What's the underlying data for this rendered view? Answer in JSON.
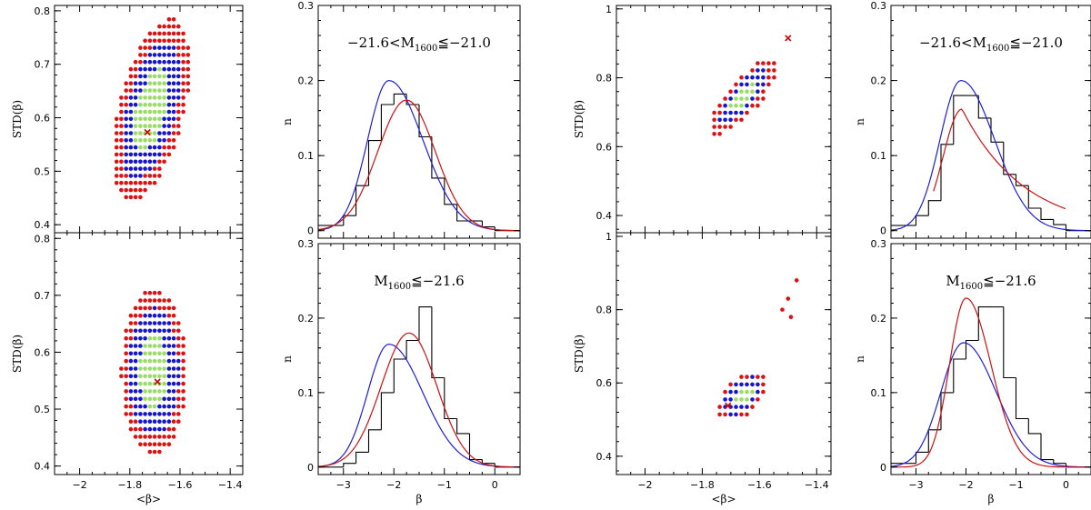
{
  "colors": {
    "outer": "#dd1111",
    "mid": "#1515cc",
    "inner": "#99dd66",
    "best": "#cc0000",
    "histogram": "#000000",
    "blue_curve": "#1f1fd6",
    "red_curve": "#cc1111"
  },
  "chart_data": [
    {
      "id": "TL",
      "type": "scatter",
      "kind": "grid",
      "xlabel": "",
      "ylabel": "STD(β)",
      "xlim": [
        -2.1,
        -1.35
      ],
      "ylim": [
        0.385,
        0.81
      ],
      "xticks": [],
      "yticks": [
        0.4,
        0.5,
        0.6,
        0.7,
        0.8
      ],
      "grid_dx": 0.019,
      "grid_dy": 0.0133,
      "cx": -1.715,
      "cy": 0.615,
      "ax": 0.155,
      "ay": 0.17,
      "cov": 0.5,
      "best": [
        -1.73,
        0.573
      ],
      "top_cut": 0.79,
      "scale_inner": 0.45,
      "scale_mid": 0.75
    },
    {
      "id": "TL2",
      "type": "histogram",
      "kind": "hist",
      "annotation": "−21.6<M",
      "annotation_sub": "1600",
      "annotation_tail": "≦−21.0",
      "xlabel": "",
      "ylabel": "n",
      "xlim": [
        -3.5,
        0.5
      ],
      "ylim": [
        -0.01,
        0.3
      ],
      "xticks": [],
      "yticks": [
        0,
        0.1,
        0.2,
        0.3
      ],
      "bin_edges": [
        -3.5,
        -3.25,
        -3.0,
        -2.75,
        -2.5,
        -2.25,
        -2.0,
        -1.75,
        -1.5,
        -1.25,
        -1.0,
        -0.75,
        -0.5,
        -0.25,
        0.0,
        0.25,
        0.5
      ],
      "bin_values": [
        0.007,
        0.007,
        0.02,
        0.06,
        0.12,
        0.168,
        0.182,
        0.168,
        0.125,
        0.07,
        0.035,
        0.013,
        0.013,
        0.005,
        0.0,
        0.0
      ],
      "blue_curve": {
        "center": -2.1,
        "peak": 0.2,
        "sigma_left": 0.42,
        "sigma_right": 0.62,
        "tail": "skew"
      },
      "red_curve": {
        "center": -1.75,
        "peak": 0.174,
        "sigma_left": 0.57,
        "sigma_right": 0.57
      }
    },
    {
      "id": "BL",
      "type": "scatter",
      "kind": "grid",
      "xlabel": "<β>",
      "ylabel": "STD(β)",
      "xlim": [
        -2.1,
        -1.35
      ],
      "ylim": [
        0.385,
        0.81
      ],
      "xticks": [
        -2,
        -1.8,
        -1.6,
        -1.4
      ],
      "yticks": [
        0.4,
        0.5,
        0.6,
        0.7,
        0.8
      ],
      "grid_dx": 0.019,
      "grid_dy": 0.0133,
      "cx": -1.705,
      "cy": 0.565,
      "ax": 0.13,
      "ay": 0.145,
      "cov": 0.0,
      "best": [
        -1.69,
        0.548
      ],
      "top_cut": 0.72,
      "scale_inner": 0.45,
      "scale_mid": 0.78
    },
    {
      "id": "BL2",
      "type": "histogram",
      "kind": "hist",
      "annotation": "M",
      "annotation_sub": "1600",
      "annotation_tail": "≦−21.6",
      "xlabel": "β",
      "ylabel": "n",
      "xlim": [
        -3.5,
        0.5
      ],
      "ylim": [
        -0.01,
        0.3
      ],
      "xticks": [
        -3,
        -2,
        -1,
        0
      ],
      "yticks": [
        0,
        0.1,
        0.2,
        0.3
      ],
      "bin_edges": [
        -3.5,
        -3.25,
        -3.0,
        -2.75,
        -2.5,
        -2.25,
        -2.0,
        -1.75,
        -1.5,
        -1.25,
        -1.0,
        -0.75,
        -0.5,
        -0.25,
        0.0,
        0.25,
        0.5
      ],
      "bin_values": [
        0.0,
        0.0,
        0.005,
        0.02,
        0.05,
        0.1,
        0.145,
        0.17,
        0.215,
        0.12,
        0.065,
        0.045,
        0.01,
        0.005,
        0.0,
        0.0
      ],
      "blue_curve": {
        "center": -2.1,
        "peak": 0.165,
        "sigma_left": 0.42,
        "sigma_right": 0.62,
        "tail": "skew"
      },
      "red_curve": {
        "center": -1.7,
        "peak": 0.18,
        "sigma_left": 0.55,
        "sigma_right": 0.55
      }
    },
    {
      "id": "TR",
      "type": "scatter",
      "kind": "grid",
      "xlabel": "",
      "ylabel": "STD(β)",
      "xlim": [
        -2.1,
        -1.35
      ],
      "ylim": [
        0.35,
        1.01
      ],
      "xticks": [],
      "yticks": [
        0.4,
        0.6,
        0.8,
        1
      ],
      "grid_dx": 0.019,
      "grid_dy": 0.0205,
      "cx": -1.655,
      "cy": 0.745,
      "ax": 0.37,
      "ay": 0.075,
      "angle": 0.82,
      "best": [
        -1.5,
        0.915
      ],
      "top_cut": 0.99,
      "scale_inner": 0.4,
      "scale_mid": 0.72
    },
    {
      "id": "TR2",
      "type": "histogram",
      "kind": "hist",
      "annotation": "−21.6<M",
      "annotation_sub": "1600",
      "annotation_tail": "≦−21.0",
      "xlabel": "",
      "ylabel": "n",
      "xlim": [
        -3.5,
        0.5
      ],
      "ylim": [
        -0.01,
        0.3
      ],
      "xticks": [],
      "yticks": [
        0,
        0.1,
        0.2,
        0.3
      ],
      "bin_edges": [
        -3.5,
        -3.25,
        -3.0,
        -2.75,
        -2.5,
        -2.25,
        -2.0,
        -1.75,
        -1.5,
        -1.25,
        -1.0,
        -0.75,
        -0.5,
        -0.25,
        0.0,
        0.25,
        0.5
      ],
      "bin_values": [
        0.007,
        0.007,
        0.02,
        0.04,
        0.115,
        0.18,
        0.18,
        0.15,
        0.118,
        0.075,
        0.06,
        0.03,
        0.015,
        0.008,
        0.0,
        0.0
      ],
      "blue_curve": {
        "center": -2.1,
        "peak": 0.2,
        "sigma_left": 0.42,
        "sigma_right": 0.62,
        "tail": "skew"
      },
      "red_curve": {
        "center": -2.08,
        "peak": 0.162,
        "sigma_left": 0.38,
        "sigma_right": 1.4,
        "start": -2.65,
        "end": 0.0
      }
    },
    {
      "id": "BR",
      "type": "scatter",
      "kind": "grid",
      "xlabel": "<β>",
      "ylabel": "STD(β)",
      "xlim": [
        -2.1,
        -1.35
      ],
      "ylim": [
        0.35,
        1.01
      ],
      "xticks": [
        -2,
        -1.8,
        -1.6,
        -1.4
      ],
      "yticks": [
        0.4,
        0.6,
        0.8,
        1
      ],
      "grid_dx": 0.019,
      "grid_dy": 0.0205,
      "cx": -1.66,
      "cy": 0.565,
      "ax": 0.23,
      "ay": 0.075,
      "angle": 0.72,
      "best": [
        -1.71,
        0.538
      ],
      "top_cut": 0.99,
      "scale_inner": 0.42,
      "scale_mid": 0.75,
      "outliers": [
        [
          -1.47,
          0.88
        ],
        [
          -1.5,
          0.83
        ],
        [
          -1.52,
          0.8
        ],
        [
          -1.49,
          0.78
        ]
      ]
    },
    {
      "id": "BR2",
      "type": "histogram",
      "kind": "hist",
      "annotation": "M",
      "annotation_sub": "1600",
      "annotation_tail": "≦−21.6",
      "xlabel": "β",
      "ylabel": "n",
      "xlim": [
        -3.5,
        0.5
      ],
      "ylim": [
        -0.01,
        0.3
      ],
      "xticks": [
        -3,
        -2,
        -1,
        0
      ],
      "yticks": [
        0,
        0.1,
        0.2,
        0.3
      ],
      "bin_edges": [
        -3.5,
        -3.25,
        -3.0,
        -2.75,
        -2.5,
        -2.25,
        -2.0,
        -1.75,
        -1.5,
        -1.25,
        -1.0,
        -0.75,
        -0.5,
        -0.25,
        0.0,
        0.25,
        0.5
      ],
      "bin_values": [
        0.005,
        0.005,
        0.02,
        0.05,
        0.1,
        0.145,
        0.17,
        0.215,
        0.215,
        0.12,
        0.065,
        0.045,
        0.01,
        0.005,
        0.0,
        0.0
      ],
      "blue_curve": {
        "center": -2.05,
        "peak": 0.167,
        "sigma_left": 0.45,
        "sigma_right": 0.6,
        "tail": "skew"
      },
      "red_curve": {
        "center": -2.0,
        "peak": 0.227,
        "sigma_left": 0.33,
        "sigma_right": 0.5
      }
    }
  ]
}
